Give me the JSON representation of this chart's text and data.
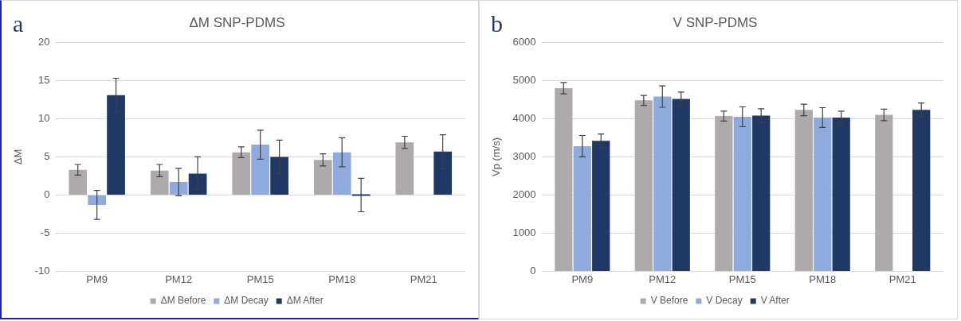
{
  "chart_data": [
    {
      "type": "bar",
      "title": "ΔM SNP-PDMS",
      "ylabel": "ΔM",
      "annotations": [
        "a"
      ],
      "categories": [
        "PM9",
        "PM12",
        "PM15",
        "PM18",
        "PM21"
      ],
      "ylim": [
        -10,
        20
      ],
      "yticks": [
        -10,
        -5,
        0,
        5,
        10,
        15,
        20
      ],
      "grid": "y",
      "legend": "bottom",
      "series": [
        {
          "name": "ΔM Before",
          "color": "#aeaaaa",
          "values": [
            3.3,
            3.2,
            5.6,
            4.6,
            6.9
          ],
          "errors": [
            0.7,
            0.8,
            0.7,
            0.8,
            0.8
          ]
        },
        {
          "name": "ΔM Decay",
          "color": "#8faadc",
          "values": [
            -1.3,
            1.7,
            6.6,
            5.6,
            null
          ],
          "errors": [
            1.9,
            1.8,
            1.9,
            1.9,
            null
          ]
        },
        {
          "name": "ΔM After",
          "color": "#203864",
          "values": [
            13.1,
            2.8,
            5.0,
            0,
            5.7
          ],
          "errors": [
            2.2,
            2.2,
            2.2,
            2.2,
            2.2
          ]
        }
      ]
    },
    {
      "type": "bar",
      "title": "V SNP-PDMS",
      "ylabel": "Vp (m/s)",
      "annotations": [
        "b"
      ],
      "categories": [
        "PM9",
        "PM12",
        "PM15",
        "PM18",
        "PM21"
      ],
      "ylim": [
        0,
        6000
      ],
      "yticks": [
        0,
        1000,
        2000,
        3000,
        4000,
        5000,
        6000
      ],
      "grid": "y",
      "legend": "bottom",
      "series": [
        {
          "name": "V Before",
          "color": "#aeaaaa",
          "values": [
            4800,
            4480,
            4070,
            4230,
            4100
          ],
          "errors": [
            150,
            130,
            130,
            150,
            150
          ]
        },
        {
          "name": "V Decay",
          "color": "#8faadc",
          "values": [
            3280,
            4580,
            4050,
            4030,
            null
          ],
          "errors": [
            280,
            280,
            260,
            260,
            null
          ]
        },
        {
          "name": "V After",
          "color": "#203864",
          "values": [
            3420,
            4520,
            4080,
            4030,
            4230
          ],
          "errors": [
            180,
            180,
            180,
            170,
            180
          ]
        }
      ]
    }
  ]
}
